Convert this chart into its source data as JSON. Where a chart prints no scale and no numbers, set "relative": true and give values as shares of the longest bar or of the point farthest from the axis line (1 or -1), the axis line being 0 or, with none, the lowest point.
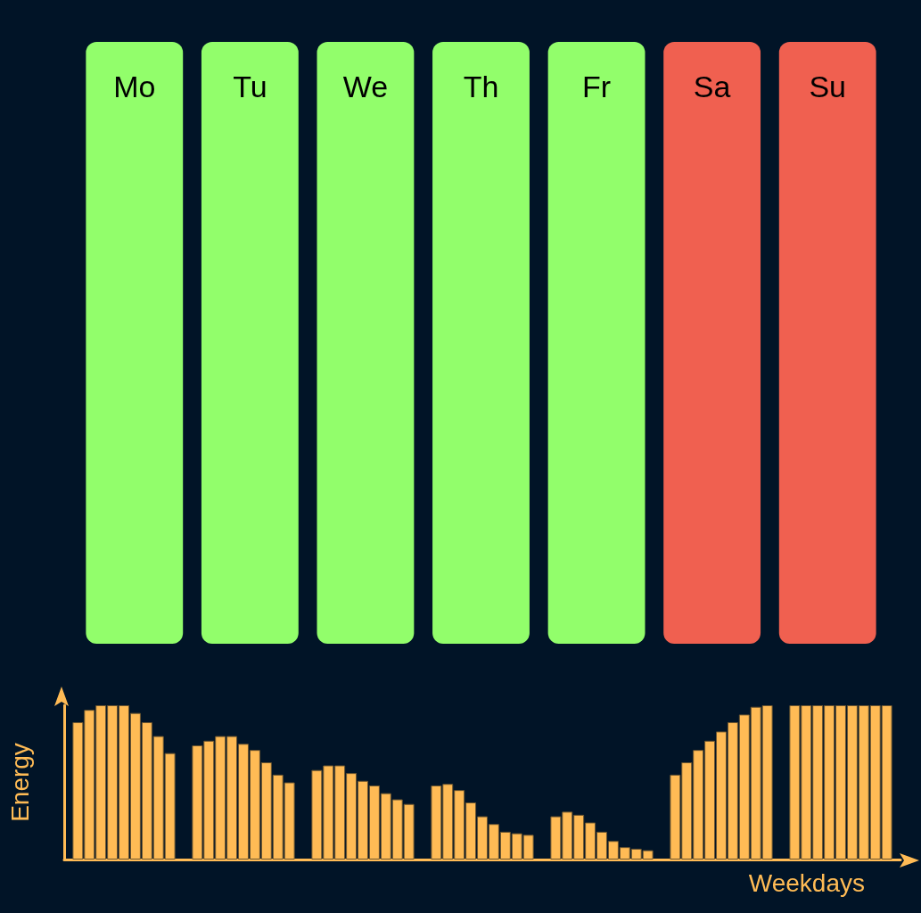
{
  "chart_data": [
    {
      "type": "other",
      "categories": [
        "Mo",
        "Tu",
        "We",
        "Th",
        "Fr",
        "Sa",
        "Su"
      ],
      "colors": [
        "#92fe6b",
        "#92fe6b",
        "#92fe6b",
        "#92fe6b",
        "#92fe6b",
        "#f06050",
        "#f06050"
      ]
    },
    {
      "type": "bar",
      "relative": true,
      "xlabel": "Weekdays",
      "ylabel": "Energy",
      "categories": [
        null,
        null,
        null,
        null,
        null,
        null,
        null
      ],
      "series": [
        {
          "color": "#ffbb55",
          "values": [
            0.89,
            0.74,
            0.58,
            0.48,
            0.28,
            0.55,
            1
          ]
        },
        {
          "color": "#ffbb55",
          "values": [
            0.97,
            0.77,
            0.61,
            0.49,
            0.31,
            0.63,
            1
          ]
        },
        {
          "color": "#ffbb55",
          "values": [
            1,
            0.8,
            0.61,
            0.45,
            0.29,
            0.71,
            1
          ]
        },
        {
          "color": "#ffbb55",
          "values": [
            1,
            0.8,
            0.56,
            0.37,
            0.24,
            0.77,
            1
          ]
        },
        {
          "color": "#ffbb55",
          "values": [
            1,
            0.75,
            0.51,
            0.28,
            0.18,
            0.83,
            1
          ]
        },
        {
          "color": "#ffbb55",
          "values": [
            0.95,
            0.71,
            0.48,
            0.23,
            0.12,
            0.89,
            1
          ]
        },
        {
          "color": "#ffbb55",
          "values": [
            0.89,
            0.63,
            0.43,
            0.18,
            0.08,
            0.94,
            1
          ]
        },
        {
          "color": "#ffbb55",
          "values": [
            0.8,
            0.55,
            0.39,
            0.17,
            0.07,
            0.99,
            1
          ]
        },
        {
          "color": "#ffbb55",
          "values": [
            0.69,
            0.5,
            0.36,
            0.16,
            0.06,
            1,
            1
          ]
        }
      ]
    }
  ]
}
